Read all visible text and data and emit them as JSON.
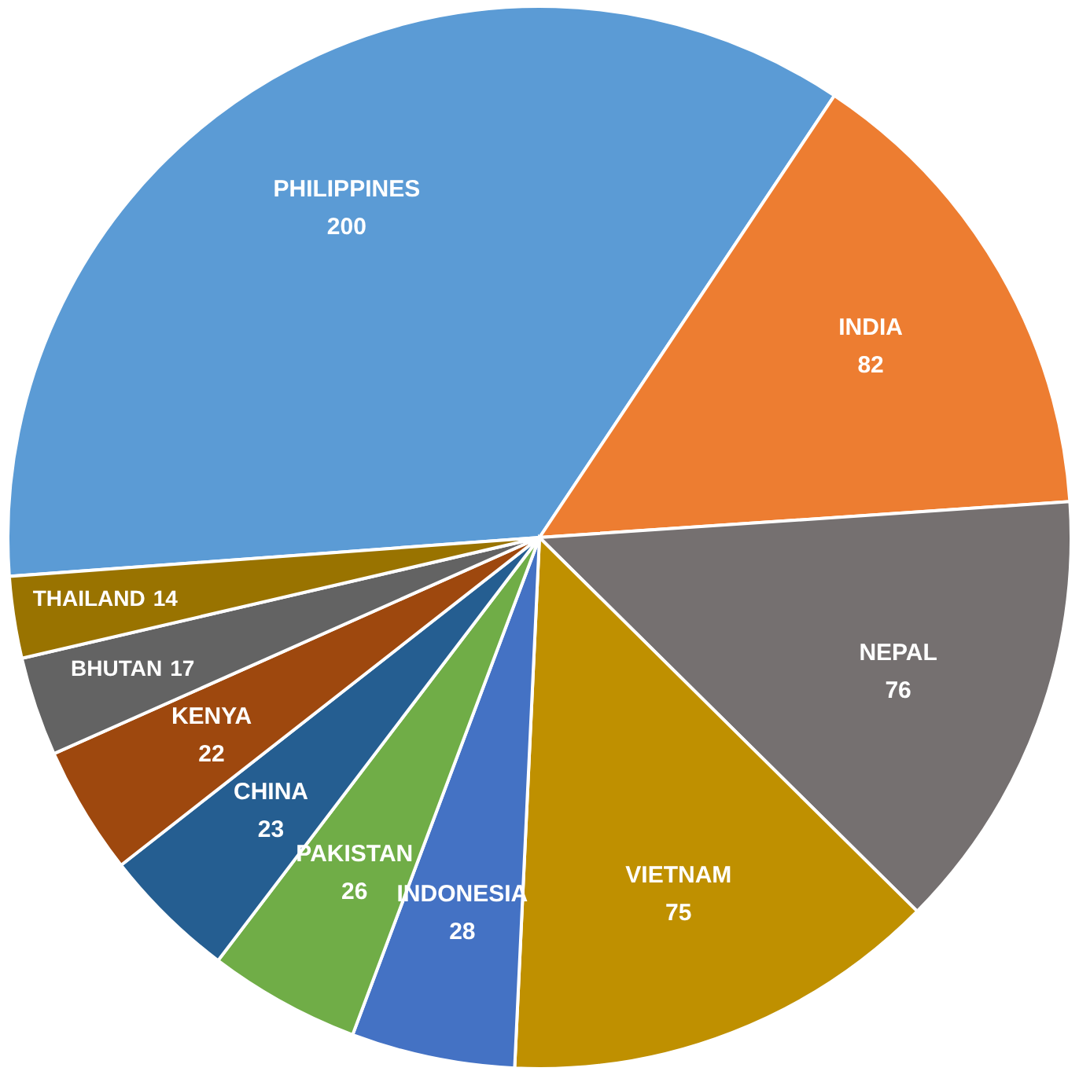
{
  "chart_data": {
    "type": "pie",
    "categories": [
      "PHILIPPINES",
      "INDIA",
      "NEPAL",
      "VIETNAM",
      "INDONESIA",
      "PAKISTAN",
      "CHINA",
      "KENYA",
      "BHUTAN",
      "THAILAND"
    ],
    "values": [
      200,
      82,
      76,
      75,
      28,
      26,
      23,
      22,
      17,
      14
    ],
    "colors": [
      "#5b9bd5",
      "#ed7d31",
      "#757070",
      "#bf9000",
      "#4472c4",
      "#70ad47",
      "#255e91",
      "#9e480e",
      "#636363",
      "#997300"
    ],
    "data_labels": true
  }
}
